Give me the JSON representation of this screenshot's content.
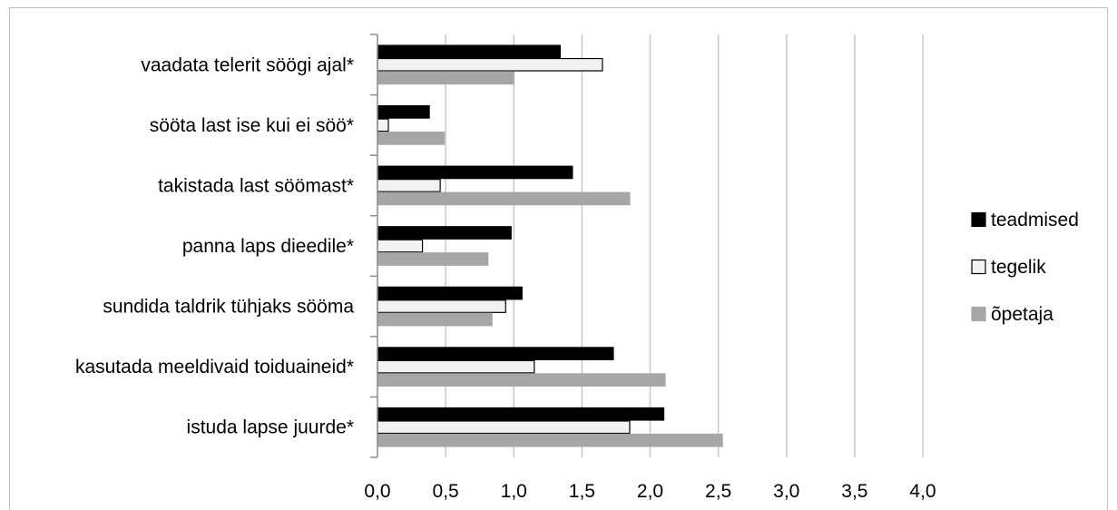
{
  "chart_data": {
    "type": "bar",
    "orientation": "horizontal",
    "categories": [
      "vaadata telerit söögi ajal*",
      "sööta last ise kui ei söö*",
      "takistada last söömast*",
      "panna laps dieedile*",
      "sundida taldrik tühjaks sööma",
      "kasutada meeldivaid toiduaineid*",
      "istuda lapse juurde*"
    ],
    "series": [
      {
        "name": "teadmised",
        "color": "#000000",
        "stroke": "#000000",
        "values": [
          1.34,
          0.38,
          1.43,
          0.98,
          1.06,
          1.73,
          2.1
        ]
      },
      {
        "name": "tegelik",
        "color": "#f2f2f2",
        "stroke": "#000000",
        "values": [
          1.65,
          0.08,
          0.46,
          0.33,
          0.94,
          1.15,
          1.85
        ]
      },
      {
        "name": "õpetaja",
        "color": "#a6a6a6",
        "stroke": "#a6a6a6",
        "values": [
          1.0,
          0.49,
          1.85,
          0.81,
          0.84,
          2.11,
          2.53
        ]
      }
    ],
    "xlim": [
      0,
      4
    ],
    "xticks": [
      "0,0",
      "0,5",
      "1,0",
      "1,5",
      "2,0",
      "2,5",
      "3,0",
      "3,5",
      "4,0"
    ],
    "grid": true,
    "legend_position": "right"
  }
}
